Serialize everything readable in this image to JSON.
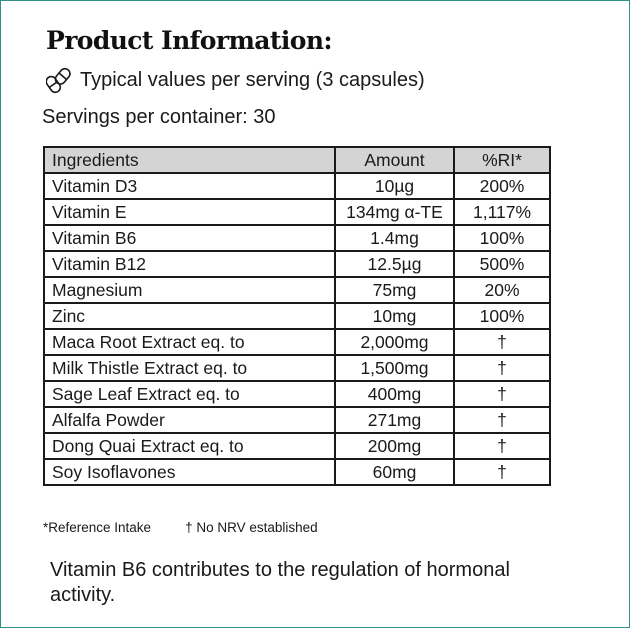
{
  "title": "Product Information:",
  "serving_note": "Typical values per serving (3 capsules)",
  "servings_per_container": "Servings per container: 30",
  "table": {
    "headers": [
      "Ingredients",
      "Amount",
      "%RI*"
    ],
    "rows": [
      [
        "Vitamin D3",
        "10µg",
        "200%"
      ],
      [
        "Vitamin E",
        "134mg α-TE",
        "1,117%"
      ],
      [
        "Vitamin B6",
        "1.4mg",
        "100%"
      ],
      [
        "Vitamin B12",
        "12.5µg",
        "500%"
      ],
      [
        "Magnesium",
        "75mg",
        "20%"
      ],
      [
        "Zinc",
        "10mg",
        "100%"
      ],
      [
        "Maca Root Extract eq. to",
        "2,000mg",
        "†"
      ],
      [
        "Milk Thistle Extract eq. to",
        "1,500mg",
        "†"
      ],
      [
        "Sage Leaf Extract eq. to",
        "400mg",
        "†"
      ],
      [
        "Alfalfa Powder",
        "271mg",
        "†"
      ],
      [
        "Dong Quai Extract eq. to",
        "200mg",
        "†"
      ],
      [
        "Soy Isoflavones",
        "60mg",
        "†"
      ]
    ]
  },
  "footnotes": {
    "reference_intake": "*Reference Intake",
    "no_nrv": "† No NRV established"
  },
  "claim": "Vitamin B6 contributes to the regulation of hormonal activity.",
  "icons": {
    "capsule": "capsules-icon"
  },
  "colors": {
    "frame": "#2f8f8a",
    "header_bg": "#d4d4d4",
    "text": "#1a1a1a"
  }
}
